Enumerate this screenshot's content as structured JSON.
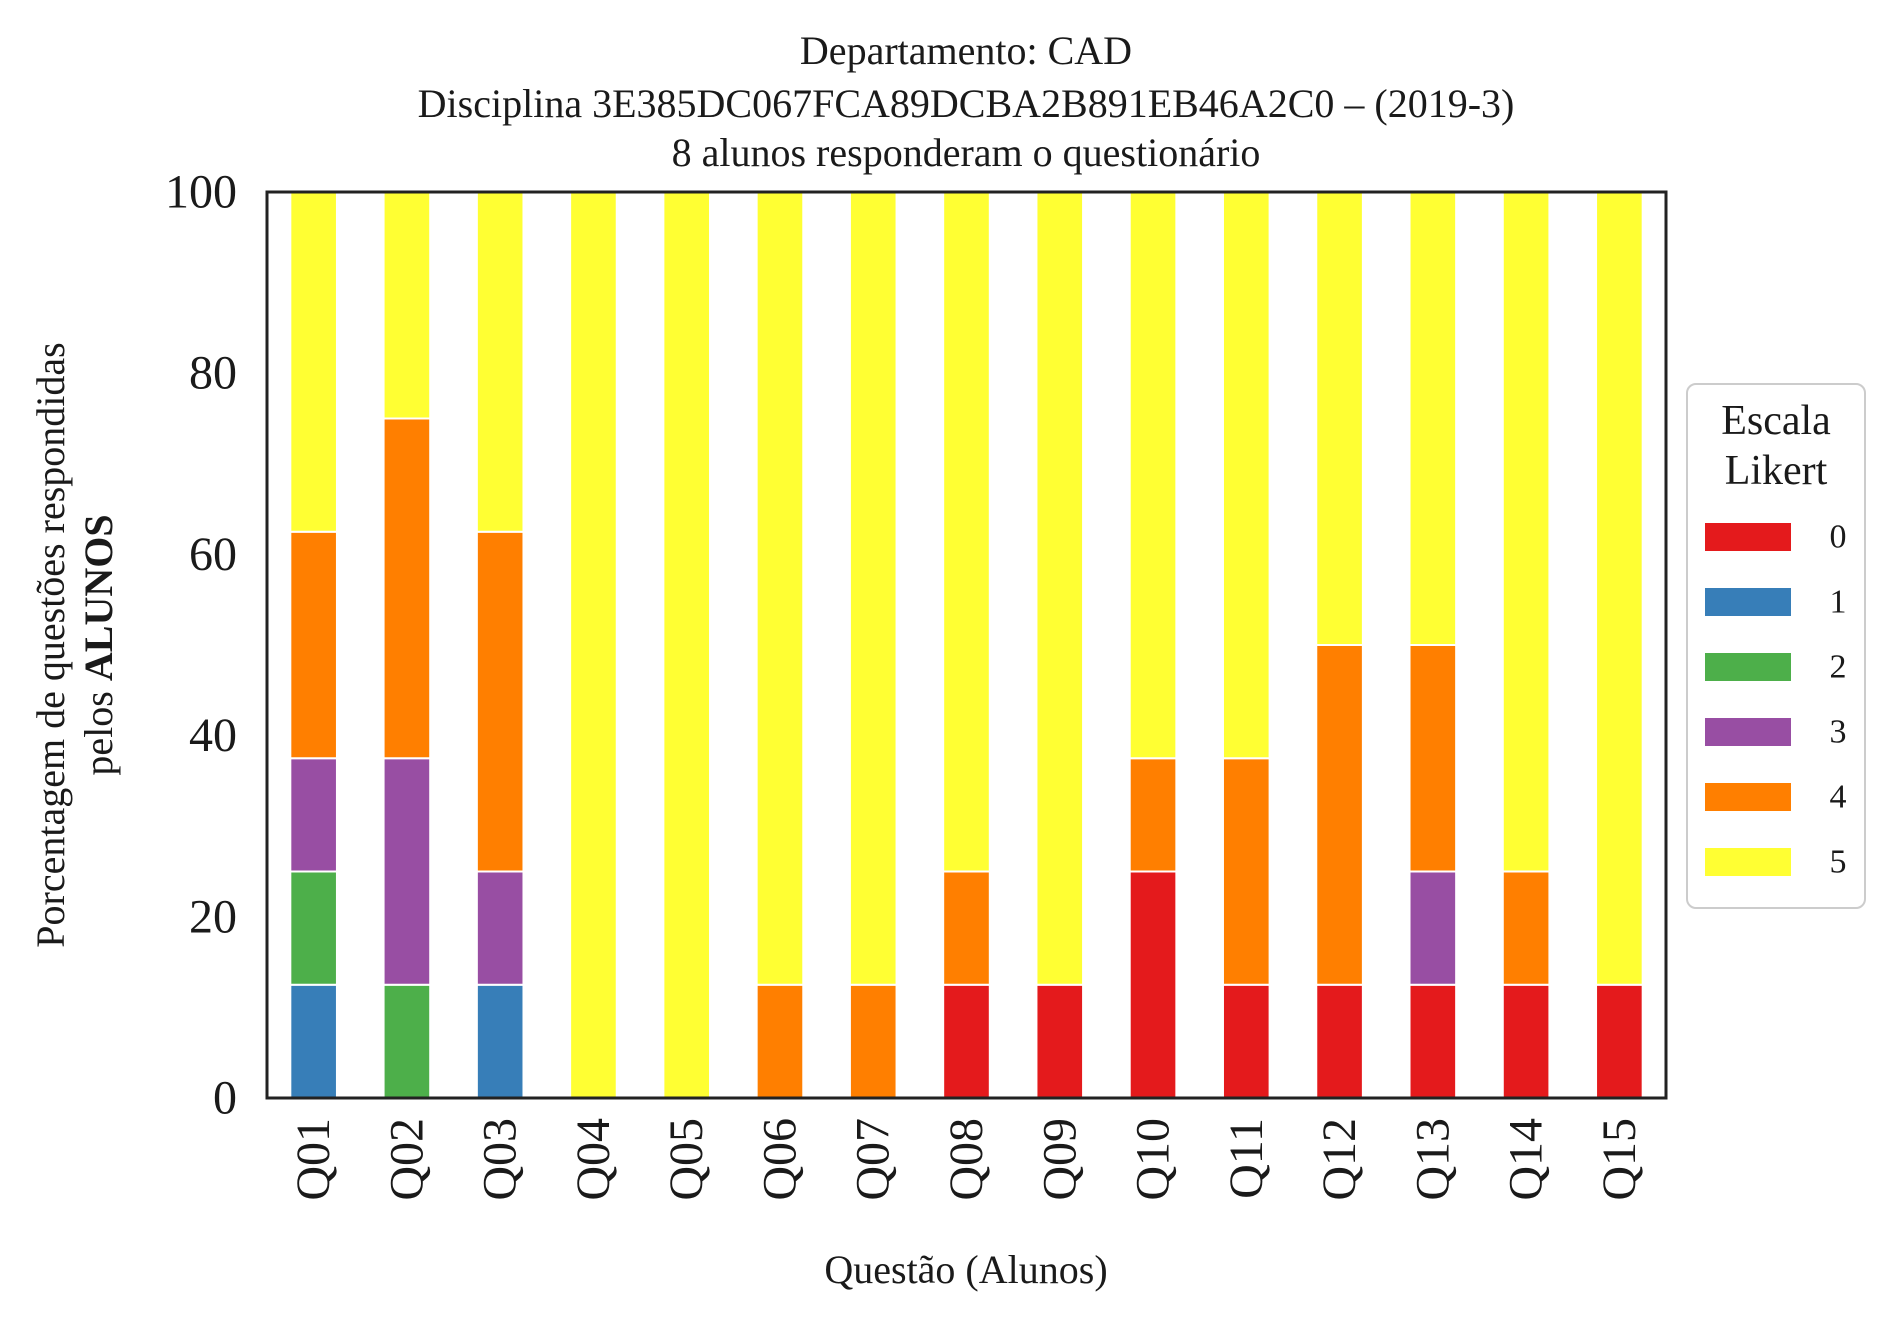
{
  "chart_data": {
    "type": "bar",
    "stacked": true,
    "title_lines": [
      "Departamento: CAD",
      "Disciplina 3E385DC067FCA89DCBA2B891EB46A2C0 – (2019-3)",
      "8 alunos responderam o questionário"
    ],
    "xlabel": "Questão (Alunos)",
    "ylabel_line1": "Porcentagem de questões respondidas",
    "ylabel_line2_prefix": "pelos ",
    "ylabel_line2_bold": "ALUNOS",
    "ylim": [
      0,
      100
    ],
    "yticks": [
      "0",
      "20",
      "40",
      "60",
      "80",
      "100"
    ],
    "grid": false,
    "legend_position": "right",
    "legend_title_line1": "Escala",
    "legend_title_line2": "Likert",
    "categories": [
      "Q01",
      "Q02",
      "Q03",
      "Q04",
      "Q05",
      "Q06",
      "Q07",
      "Q08",
      "Q09",
      "Q10",
      "Q11",
      "Q12",
      "Q13",
      "Q14",
      "Q15"
    ],
    "series": [
      {
        "name": "0",
        "color": "#e41a1c",
        "values": [
          0,
          0,
          0,
          0,
          0,
          0,
          0,
          12.5,
          12.5,
          25,
          12.5,
          12.5,
          12.5,
          12.5,
          12.5
        ]
      },
      {
        "name": "1",
        "color": "#377eb8",
        "values": [
          12.5,
          0,
          12.5,
          0,
          0,
          0,
          0,
          0,
          0,
          0,
          0,
          0,
          0,
          0,
          0
        ]
      },
      {
        "name": "2",
        "color": "#4daf4a",
        "values": [
          12.5,
          12.5,
          0,
          0,
          0,
          0,
          0,
          0,
          0,
          0,
          0,
          0,
          0,
          0,
          0
        ]
      },
      {
        "name": "3",
        "color": "#984ea3",
        "values": [
          12.5,
          25,
          12.5,
          0,
          0,
          0,
          0,
          0,
          0,
          0,
          0,
          0,
          12.5,
          0,
          0
        ]
      },
      {
        "name": "4",
        "color": "#ff7f00",
        "values": [
          25,
          37.5,
          37.5,
          0,
          0,
          12.5,
          12.5,
          12.5,
          0,
          12.5,
          25,
          37.5,
          25,
          12.5,
          0
        ]
      },
      {
        "name": "5",
        "color": "#ffff33",
        "values": [
          37.5,
          25,
          37.5,
          100,
          100,
          87.5,
          87.5,
          75,
          87.5,
          62.5,
          62.5,
          50,
          50,
          75,
          87.5
        ]
      }
    ]
  }
}
